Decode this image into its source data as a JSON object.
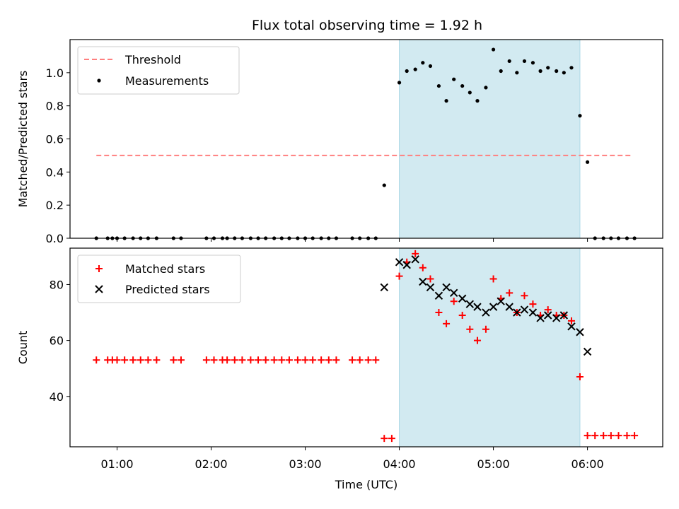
{
  "title": "Flux total observing time = 1.92 h",
  "colors": {
    "threshold": "#ff7f7f",
    "measurement": "#000000",
    "matched": "#ff0000",
    "predicted": "#000000",
    "span_fill": "#add8e6"
  },
  "chart_data": [
    {
      "type": "scatter",
      "panel": "top",
      "xlabel": "",
      "ylabel": "Matched/Predicted stars",
      "xlim": [
        0.5,
        6.8
      ],
      "ylim": [
        0,
        1.2
      ],
      "y_ticks": [
        0.0,
        0.2,
        0.4,
        0.6,
        0.8,
        1.0
      ],
      "y_tick_labels": [
        "0.0",
        "0.2",
        "0.4",
        "0.6",
        "0.8",
        "1.0"
      ],
      "span": [
        4.0,
        5.92
      ],
      "legend_placement": "top-left",
      "threshold": {
        "name": "Threshold",
        "x": [
          0.78,
          6.48
        ],
        "y": [
          0.5,
          0.5
        ]
      },
      "series": [
        {
          "name": "Measurements",
          "points": [
            [
              0.78,
              0
            ],
            [
              0.9,
              0
            ],
            [
              0.95,
              0
            ],
            [
              1.0,
              0
            ],
            [
              1.08,
              0
            ],
            [
              1.17,
              0
            ],
            [
              1.25,
              0
            ],
            [
              1.33,
              0
            ],
            [
              1.42,
              0
            ],
            [
              1.6,
              0
            ],
            [
              1.68,
              0
            ],
            [
              1.95,
              0
            ],
            [
              2.03,
              0
            ],
            [
              2.12,
              0
            ],
            [
              2.17,
              0
            ],
            [
              2.25,
              0
            ],
            [
              2.33,
              0
            ],
            [
              2.42,
              0
            ],
            [
              2.5,
              0
            ],
            [
              2.58,
              0
            ],
            [
              2.67,
              0
            ],
            [
              2.75,
              0
            ],
            [
              2.83,
              0
            ],
            [
              2.92,
              0
            ],
            [
              3.0,
              0
            ],
            [
              3.08,
              0
            ],
            [
              3.17,
              0
            ],
            [
              3.25,
              0
            ],
            [
              3.33,
              0
            ],
            [
              3.5,
              0
            ],
            [
              3.58,
              0
            ],
            [
              3.67,
              0
            ],
            [
              3.75,
              0
            ],
            [
              3.84,
              0.32
            ],
            [
              4.0,
              0.94
            ],
            [
              4.08,
              1.01
            ],
            [
              4.17,
              1.02
            ],
            [
              4.25,
              1.06
            ],
            [
              4.33,
              1.04
            ],
            [
              4.42,
              0.92
            ],
            [
              4.5,
              0.83
            ],
            [
              4.58,
              0.96
            ],
            [
              4.67,
              0.92
            ],
            [
              4.75,
              0.88
            ],
            [
              4.83,
              0.83
            ],
            [
              4.92,
              0.91
            ],
            [
              5.0,
              1.14
            ],
            [
              5.08,
              1.01
            ],
            [
              5.17,
              1.07
            ],
            [
              5.25,
              1.0
            ],
            [
              5.33,
              1.07
            ],
            [
              5.42,
              1.06
            ],
            [
              5.5,
              1.01
            ],
            [
              5.58,
              1.03
            ],
            [
              5.67,
              1.01
            ],
            [
              5.75,
              1.0
            ],
            [
              5.83,
              1.03
            ],
            [
              5.92,
              0.74
            ],
            [
              6.0,
              0.46
            ],
            [
              6.08,
              0
            ],
            [
              6.17,
              0
            ],
            [
              6.25,
              0
            ],
            [
              6.33,
              0
            ],
            [
              6.42,
              0
            ],
            [
              6.5,
              0
            ]
          ]
        }
      ]
    },
    {
      "type": "scatter",
      "panel": "bottom",
      "xlabel": "Time (UTC)",
      "ylabel": "Count",
      "xlim": [
        0.5,
        6.8
      ],
      "ylim": [
        22,
        93
      ],
      "y_ticks": [
        40,
        60,
        80
      ],
      "y_tick_labels": [
        "40",
        "60",
        "80"
      ],
      "x_ticks": [
        1,
        2,
        3,
        4,
        5,
        6
      ],
      "x_tick_labels": [
        "01:00",
        "02:00",
        "03:00",
        "04:00",
        "05:00",
        "06:00"
      ],
      "span": [
        4.0,
        5.92
      ],
      "legend_placement": "top-left",
      "series": [
        {
          "name": "Matched stars",
          "marker": "plus",
          "points": [
            [
              0.78,
              53
            ],
            [
              0.9,
              53
            ],
            [
              0.95,
              53
            ],
            [
              1.0,
              53
            ],
            [
              1.08,
              53
            ],
            [
              1.17,
              53
            ],
            [
              1.25,
              53
            ],
            [
              1.33,
              53
            ],
            [
              1.42,
              53
            ],
            [
              1.6,
              53
            ],
            [
              1.68,
              53
            ],
            [
              1.95,
              53
            ],
            [
              2.03,
              53
            ],
            [
              2.12,
              53
            ],
            [
              2.17,
              53
            ],
            [
              2.25,
              53
            ],
            [
              2.33,
              53
            ],
            [
              2.42,
              53
            ],
            [
              2.5,
              53
            ],
            [
              2.58,
              53
            ],
            [
              2.67,
              53
            ],
            [
              2.75,
              53
            ],
            [
              2.83,
              53
            ],
            [
              2.92,
              53
            ],
            [
              3.0,
              53
            ],
            [
              3.08,
              53
            ],
            [
              3.17,
              53
            ],
            [
              3.25,
              53
            ],
            [
              3.33,
              53
            ],
            [
              3.5,
              53
            ],
            [
              3.58,
              53
            ],
            [
              3.67,
              53
            ],
            [
              3.75,
              53
            ],
            [
              3.84,
              25
            ],
            [
              3.92,
              25
            ],
            [
              4.0,
              83
            ],
            [
              4.08,
              88
            ],
            [
              4.17,
              91
            ],
            [
              4.25,
              86
            ],
            [
              4.33,
              82
            ],
            [
              4.42,
              70
            ],
            [
              4.5,
              66
            ],
            [
              4.58,
              74
            ],
            [
              4.67,
              69
            ],
            [
              4.75,
              64
            ],
            [
              4.83,
              60
            ],
            [
              4.92,
              64
            ],
            [
              5.0,
              82
            ],
            [
              5.08,
              75
            ],
            [
              5.17,
              77
            ],
            [
              5.25,
              70
            ],
            [
              5.33,
              76
            ],
            [
              5.42,
              73
            ],
            [
              5.5,
              69
            ],
            [
              5.58,
              71
            ],
            [
              5.67,
              69
            ],
            [
              5.75,
              69
            ],
            [
              5.83,
              67
            ],
            [
              5.92,
              47
            ],
            [
              6.0,
              26
            ],
            [
              6.08,
              26
            ],
            [
              6.17,
              26
            ],
            [
              6.25,
              26
            ],
            [
              6.33,
              26
            ],
            [
              6.42,
              26
            ],
            [
              6.5,
              26
            ]
          ]
        },
        {
          "name": "Predicted stars",
          "marker": "x",
          "points": [
            [
              3.84,
              79
            ],
            [
              4.0,
              88
            ],
            [
              4.08,
              87
            ],
            [
              4.17,
              89
            ],
            [
              4.25,
              81
            ],
            [
              4.33,
              79
            ],
            [
              4.42,
              76
            ],
            [
              4.5,
              79
            ],
            [
              4.58,
              77
            ],
            [
              4.67,
              75
            ],
            [
              4.75,
              73
            ],
            [
              4.83,
              72
            ],
            [
              4.92,
              70
            ],
            [
              5.0,
              72
            ],
            [
              5.08,
              74
            ],
            [
              5.17,
              72
            ],
            [
              5.25,
              70
            ],
            [
              5.33,
              71
            ],
            [
              5.42,
              70
            ],
            [
              5.5,
              68
            ],
            [
              5.58,
              69
            ],
            [
              5.67,
              68
            ],
            [
              5.75,
              69
            ],
            [
              5.83,
              65
            ],
            [
              5.92,
              63
            ],
            [
              6.0,
              56
            ]
          ]
        }
      ]
    }
  ]
}
